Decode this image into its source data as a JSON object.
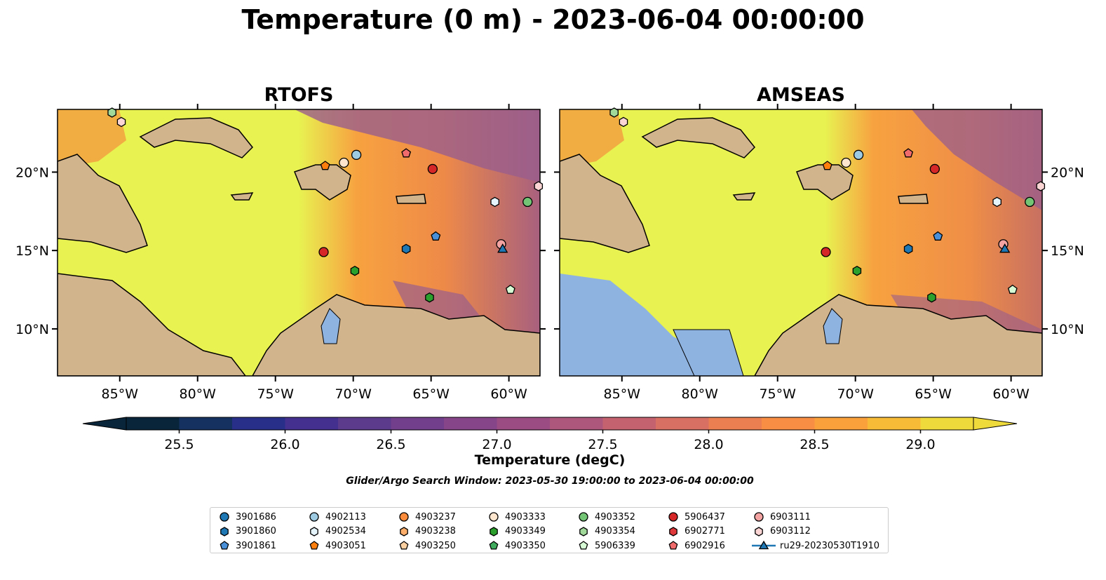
{
  "title": "Temperature (0 m) - 2023-06-04 00:00:00",
  "panels": [
    {
      "title": "RTOFS",
      "colormap": "rtofs"
    },
    {
      "title": "AMSEAS",
      "colormap": "amseas"
    }
  ],
  "map": {
    "lon_range": [
      -89.0,
      -58.0
    ],
    "lat_range": [
      7.0,
      24.0
    ],
    "lon_ticks": [
      {
        "value": -85,
        "label": "85°W"
      },
      {
        "value": -80,
        "label": "80°W"
      },
      {
        "value": -75,
        "label": "75°W"
      },
      {
        "value": -70,
        "label": "70°W"
      },
      {
        "value": -65,
        "label": "65°W"
      },
      {
        "value": -60,
        "label": "60°W"
      }
    ],
    "lat_ticks": [
      {
        "value": 20,
        "label": "20°N"
      },
      {
        "value": 15,
        "label": "15°N"
      },
      {
        "value": 10,
        "label": "10°N"
      }
    ],
    "colors": {
      "land": "#d2b48c",
      "water": "#8fb3e0",
      "warm": "#e8f251",
      "mid": "#f29a3f",
      "cool": "#9a5e8c"
    }
  },
  "colorbar": {
    "label": "Temperature (degC)",
    "ticks": [
      "25.5",
      "26.0",
      "26.5",
      "27.0",
      "27.5",
      "28.0",
      "28.5",
      "29.0"
    ],
    "tick_values": [
      25.5,
      26.0,
      26.5,
      27.0,
      27.5,
      28.0,
      28.5,
      29.0
    ],
    "range": [
      25.25,
      29.25
    ],
    "colors": [
      "#08253a",
      "#143160",
      "#272f88",
      "#44318f",
      "#5c3a8c",
      "#723f8c",
      "#864589",
      "#9a4c83",
      "#ae577d",
      "#c4636f",
      "#d87163",
      "#ec7f51",
      "#f88e44",
      "#fba13b",
      "#f8bb38",
      "#efda3c"
    ]
  },
  "search_window": "Glider/Argo Search Window: 2023-05-30 19:00:00 to 2023-06-04 00:00:00",
  "legend": [
    {
      "label": "3901686",
      "marker": "circle",
      "color": "#1f77b4"
    },
    {
      "label": "3901860",
      "marker": "hexagon",
      "color": "#1f77b4"
    },
    {
      "label": "3901861",
      "marker": "pentagon",
      "color": "#4a90d9"
    },
    {
      "label": "4902113",
      "marker": "circle",
      "color": "#9ecae1"
    },
    {
      "label": "4902534",
      "marker": "hexagon",
      "color": "#e5f3fb"
    },
    {
      "label": "4903051",
      "marker": "pentagon",
      "color": "#ff7f0e"
    },
    {
      "label": "4903237",
      "marker": "circle",
      "color": "#fd8d3c"
    },
    {
      "label": "4903238",
      "marker": "hexagon",
      "color": "#fdae6b"
    },
    {
      "label": "4903250",
      "marker": "pentagon",
      "color": "#fdd0a2"
    },
    {
      "label": "4903333",
      "marker": "circle",
      "color": "#fee6ce"
    },
    {
      "label": "4903349",
      "marker": "hexagon",
      "color": "#2ca02c"
    },
    {
      "label": "4903350",
      "marker": "pentagon",
      "color": "#41ab5d"
    },
    {
      "label": "4903352",
      "marker": "circle",
      "color": "#74c476"
    },
    {
      "label": "4903354",
      "marker": "hexagon",
      "color": "#a1d99b"
    },
    {
      "label": "5906339",
      "marker": "pentagon",
      "color": "#d7fbd4"
    },
    {
      "label": "5906437",
      "marker": "circle",
      "color": "#d62728"
    },
    {
      "label": "6902771",
      "marker": "hexagon",
      "color": "#e0393b"
    },
    {
      "label": "6902916",
      "marker": "pentagon",
      "color": "#ef6b6c"
    },
    {
      "label": "6903111",
      "marker": "circle",
      "color": "#f4a3a3"
    },
    {
      "label": "6903112",
      "marker": "hexagon",
      "color": "#fbd4d4"
    },
    {
      "label": "ru29-20230530T1910",
      "marker": "triangle",
      "color": "#1f77b4"
    }
  ],
  "markers": [
    {
      "label": "4903354",
      "lon": -85.5,
      "lat": 23.8
    },
    {
      "label": "6903112",
      "lon": -84.9,
      "lat": 23.2
    },
    {
      "label": "6902916",
      "lon": -66.6,
      "lat": 21.2
    },
    {
      "label": "4902113",
      "lon": -69.8,
      "lat": 21.1
    },
    {
      "label": "4903333",
      "lon": -70.6,
      "lat": 20.6
    },
    {
      "label": "4903051",
      "lon": -71.8,
      "lat": 20.4
    },
    {
      "label": "5906437",
      "lon": -64.9,
      "lat": 20.2
    },
    {
      "label": "6903112",
      "lon": -58.1,
      "lat": 19.1
    },
    {
      "label": "4903352",
      "lon": -58.8,
      "lat": 18.1
    },
    {
      "label": "4902534",
      "lon": -60.9,
      "lat": 18.1
    },
    {
      "label": "3901861",
      "lon": -64.7,
      "lat": 15.9
    },
    {
      "label": "6903111",
      "lon": -60.5,
      "lat": 15.4
    },
    {
      "label": "ru29-20230530T1910",
      "lon": -60.4,
      "lat": 15.1
    },
    {
      "label": "3901860",
      "lon": -66.6,
      "lat": 15.1
    },
    {
      "label": "5906437",
      "lon": -71.9,
      "lat": 14.9
    },
    {
      "label": "4903349",
      "lon": -69.9,
      "lat": 13.7
    },
    {
      "label": "5906339",
      "lon": -59.9,
      "lat": 12.5
    },
    {
      "label": "4903349",
      "lon": -65.1,
      "lat": 12.0
    }
  ]
}
